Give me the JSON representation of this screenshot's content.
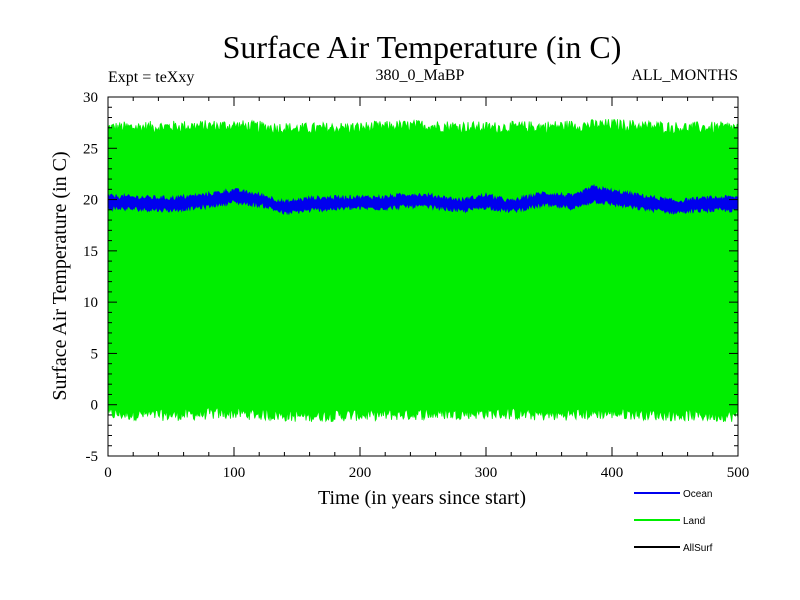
{
  "chart_data": {
    "type": "line",
    "title": "Surface Air Temperature (in C)",
    "subtitle_left": "Expt = teXxy",
    "subtitle_center": "380_0_MaBP",
    "subtitle_right": "ALL_MONTHS",
    "xlabel": "Time (in years since start)",
    "ylabel": "Surface Air Temperature (in C)",
    "xlim": [
      0,
      500
    ],
    "ylim": [
      -5,
      30
    ],
    "xticks": [
      0,
      100,
      200,
      300,
      400,
      500
    ],
    "yticks": [
      -5,
      0,
      5,
      10,
      15,
      20,
      25,
      30
    ],
    "xtick_labels": [
      "0",
      "100",
      "200",
      "300",
      "400",
      "500"
    ],
    "ytick_labels": [
      "-5",
      "0",
      "5",
      "10",
      "15",
      "20",
      "25",
      "30"
    ],
    "legend_position": "bottom-right",
    "series": [
      {
        "name": "Land",
        "color": "#00ee00",
        "band": true,
        "annual_max": 27,
        "annual_min": -1,
        "x": [
          0,
          50,
          100,
          150,
          200,
          250,
          300,
          350,
          400,
          450,
          500
        ],
        "upper": [
          27.0,
          27.1,
          27.2,
          26.9,
          27.0,
          27.2,
          27.0,
          27.1,
          27.3,
          27.0,
          27.0
        ],
        "lower": [
          -0.9,
          -1.0,
          -0.8,
          -1.1,
          -1.0,
          -0.9,
          -0.8,
          -1.0,
          -0.8,
          -1.0,
          -1.1
        ]
      },
      {
        "name": "Ocean",
        "color": "#0000ee",
        "band": true,
        "x": [
          0,
          25,
          50,
          75,
          100,
          125,
          140,
          160,
          190,
          220,
          240,
          260,
          280,
          300,
          320,
          345,
          370,
          385,
          400,
          420,
          450,
          475,
          500
        ],
        "upper": [
          20.3,
          20.2,
          20.1,
          20.4,
          20.9,
          20.3,
          19.7,
          20.1,
          20.2,
          20.2,
          20.5,
          20.3,
          19.9,
          20.4,
          19.8,
          20.6,
          20.3,
          21.2,
          20.8,
          20.4,
          19.8,
          20.1,
          20.2
        ],
        "lower": [
          19.2,
          19.1,
          19.0,
          19.3,
          19.8,
          19.4,
          18.7,
          19.0,
          19.2,
          19.2,
          19.4,
          19.3,
          18.9,
          19.3,
          18.9,
          19.5,
          19.2,
          19.9,
          19.6,
          19.2,
          18.8,
          19.0,
          19.0
        ]
      },
      {
        "name": "AllSurf",
        "color": "#000000",
        "band": false,
        "x": [],
        "y": []
      }
    ]
  }
}
